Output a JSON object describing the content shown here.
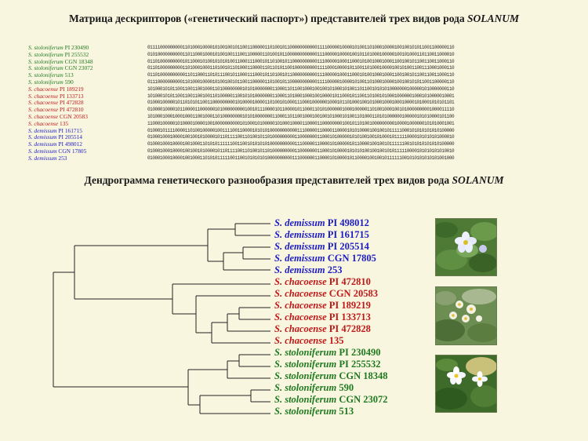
{
  "titles": {
    "matrix_prefix": "Матрица дескрипторов («генетический паспорт») представителей трех видов рода ",
    "matrix_genus": "SOLANUM",
    "dendro_prefix": "Дендрограмма генетического разнообразия представителей трех видов рода ",
    "dendro_genus": "SOLANUM"
  },
  "colors": {
    "stoloniferum": "#1f7a1f",
    "chacoense": "#c01818",
    "demissum": "#1c1cc4",
    "branch": "#222222"
  },
  "matrix_rows": [
    {
      "species": "S. stoloniferum",
      "accession": "PI 230490",
      "group": "stoloniferum",
      "code": "011110000000001101000100001010010010110011000001101001011000000000001111000001000010100110100010000100100101011001100000110"
    },
    {
      "species": "S. stoloniferum",
      "accession": "PI 255532",
      "group": "stoloniferum",
      "code": "010100000000001101100010001010010011100110000011010010110000000000001110000010000100101101000100000100101000110110011000010"
    },
    {
      "species": "S. stoloniferum",
      "accession": "CGN 18348",
      "group": "stoloniferum",
      "code": "011010000000001011000101001010101001100011100010110100101100000000001110000010001100010100100010001100100101100110011000110"
    },
    {
      "species": "S. stoloniferum",
      "accession": "CGN 23072",
      "group": "stoloniferum",
      "code": "011010000000001101000100011010010110100011000011011010110010000000001111000100001011001101000100001001010011001110001000110"
    },
    {
      "species": "S. stoloniferum",
      "accession": "513",
      "group": "stoloniferum",
      "code": "011010000000000110110001101011100101100011100010110100101100000000001110000010001100010100100010001100100101100110011000110"
    },
    {
      "species": "S. stoloniferum",
      "accession": "590",
      "group": "stoloniferum",
      "code": "011100000000001101000100001010010010110011000001101001011000000000001111000001000010100110100010000100100101011001100000110"
    },
    {
      "species": "S. chacoense",
      "accession": "PI 189219",
      "group": "chacoense",
      "code": "101000101011001100110010001101000000001010100000001100011011001000100100101000101001101100101010100000001000001010000000110"
    },
    {
      "species": "S. chacoense",
      "accession": "PI 133713",
      "group": "chacoense",
      "code": "101000101011001100110010011010000011001010100000001100011010001000100100001011000101100110100101000100000010001010000010001"
    },
    {
      "species": "S. chacoense",
      "accession": "PI 472828",
      "group": "chacoense",
      "code": "010001000001011010101100110000000001010000100001101001010001110001000000100010110100010010100010001000100001010001010101101"
    },
    {
      "species": "S. chacoense",
      "accession": "PI 472810",
      "group": "chacoense",
      "code": "010000100001011000011000000101000000000100101110000101100001011000110101000000100010000011010010001001010000000001000011110"
    },
    {
      "species": "S. chacoense",
      "accession": "CGN 20583",
      "group": "chacoense",
      "code": "101000100010001000110010001101000000001010100000001100011011001000100100101000101001101000110101000000100000101010000101100"
    },
    {
      "species": "S. chacoense",
      "accession": "135",
      "group": "chacoense",
      "code": "110001000001010000100001001000000000010100010100000101000100001100001100000000100101101001000000000100001000000101010001001"
    },
    {
      "species": "S. demissum",
      "accession": "PI 161715",
      "group": "demissum",
      "code": "010001011110000110100100000100111100110000101010100000000000111000001100001100001010100001001001011111000101010101010100000"
    },
    {
      "species": "S. demissum",
      "accession": "PI 205514",
      "group": "demissum",
      "code": "010001000100001001001010000101101111001101001011010000000001100000001100010100000101010010010100010111110000101010101000010"
    },
    {
      "species": "S. demissum",
      "accession": "PI 498012",
      "group": "demissum",
      "code": "010001000100001001000110101011111100110010101010100000000001110000011000010100000101100001001001011111100101010101010100000"
    },
    {
      "species": "S. demissum",
      "accession": "CGN 17805",
      "group": "demissum",
      "code": "010001000100001001001010000101101111001101001011010000000001100000001100010100001010101001001001010111110000101010101010010"
    },
    {
      "species": "S. demissum",
      "accession": "253",
      "group": "demissum",
      "code": "010001000100001001000110101011111001100101010101000000000011100000011000010100001011000010010010111111001010101010101001000"
    }
  ],
  "dendro_leaves": [
    {
      "species": "S. demissum",
      "accession": "PI 498012",
      "group": "demissum"
    },
    {
      "species": "S. demissum",
      "accession": "PI 161715",
      "group": "demissum"
    },
    {
      "species": "S. demissum",
      "accession": "PI 205514",
      "group": "demissum"
    },
    {
      "species": "S. demissum",
      "accession": "CGN 17805",
      "group": "demissum"
    },
    {
      "species": "S. demissum",
      "accession": "253",
      "group": "demissum"
    },
    {
      "species": "S. chacoense",
      "accession": "PI 472810",
      "group": "chacoense"
    },
    {
      "species": "S. chacoense",
      "accession": "CGN 20583",
      "group": "chacoense"
    },
    {
      "species": "S. chacoense",
      "accession": "PI 189219",
      "group": "chacoense"
    },
    {
      "species": "S. chacoense",
      "accession": "PI 133713",
      "group": "chacoense"
    },
    {
      "species": "S. chacoense",
      "accession": "PI 472828",
      "group": "chacoense"
    },
    {
      "species": "S. chacoense",
      "accession": "135",
      "group": "chacoense"
    },
    {
      "species": "S. stoloniferum",
      "accession": "PI 230490",
      "group": "stoloniferum"
    },
    {
      "species": "S. stoloniferum",
      "accession": "PI 255532",
      "group": "stoloniferum"
    },
    {
      "species": "S. stoloniferum",
      "accession": "CGN 18348",
      "group": "stoloniferum"
    },
    {
      "species": "S. stoloniferum",
      "accession": "590",
      "group": "stoloniferum"
    },
    {
      "species": "S. stoloniferum",
      "accession": "CGN 23072",
      "group": "stoloniferum"
    },
    {
      "species": "S. stoloniferum",
      "accession": "513",
      "group": "stoloniferum"
    }
  ],
  "photos": [
    {
      "subject": "demissum-flower-photo"
    },
    {
      "subject": "chacoense-flower-photo"
    },
    {
      "subject": "stoloniferum-flower-photo"
    }
  ]
}
